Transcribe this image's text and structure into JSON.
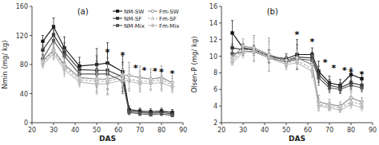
{
  "chart_data": [
    {
      "type": "line",
      "title": "(a)",
      "x_label": "DAS",
      "y_label": "Nmin (mg/ kg)",
      "x": [
        25,
        30,
        35,
        42,
        50,
        55,
        62,
        65,
        70,
        75,
        80,
        85
      ],
      "xlim": [
        20,
        90
      ],
      "xticks": [
        20,
        30,
        40,
        50,
        60,
        70,
        80,
        90
      ],
      "ylim": [
        0,
        160
      ],
      "yticks": [
        0,
        40,
        80,
        120,
        160
      ],
      "grid": false,
      "legend": "upper right",
      "series": [
        {
          "name": "NM-SW",
          "color": "#111111",
          "marker": "square",
          "line_style": "solid",
          "values": [
            112,
            132,
            103,
            78,
            80,
            82,
            70,
            18,
            16,
            15,
            16,
            14
          ],
          "errors": [
            8,
            12,
            15,
            12,
            22,
            28,
            22,
            5,
            4,
            4,
            4,
            4
          ]
        },
        {
          "name": "NM-SF",
          "color": "#333333",
          "marker": "square",
          "line_style": "solid",
          "values": [
            100,
            121,
            97,
            73,
            72,
            72,
            63,
            16,
            14,
            13,
            14,
            12
          ],
          "errors": [
            7,
            11,
            13,
            10,
            20,
            25,
            20,
            4,
            3,
            3,
            3,
            3
          ]
        },
        {
          "name": "NM-Mix",
          "color": "#555555",
          "marker": "square",
          "line_style": "solid",
          "values": [
            88,
            113,
            92,
            67,
            67,
            67,
            57,
            14,
            12,
            11,
            12,
            10
          ],
          "errors": [
            6,
            10,
            11,
            8,
            18,
            22,
            17,
            3,
            2,
            2,
            2,
            2
          ]
        },
        {
          "name": "Fm-SW",
          "color": "#888888",
          "marker": "open-circle",
          "line_style": "solid",
          "values": [
            85,
            100,
            80,
            62,
            60,
            60,
            65,
            65,
            62,
            60,
            62,
            55
          ],
          "errors": [
            7,
            11,
            12,
            9,
            18,
            20,
            15,
            18,
            16,
            14,
            16,
            10
          ]
        },
        {
          "name": "Fm-SF",
          "color": "#aaaaaa",
          "marker": "open-triangle",
          "line_style": "dashed",
          "values": [
            83,
            98,
            77,
            59,
            57,
            57,
            62,
            60,
            57,
            57,
            59,
            52
          ],
          "errors": [
            6,
            10,
            11,
            8,
            16,
            18,
            13,
            16,
            14,
            12,
            14,
            9
          ]
        },
        {
          "name": "Fm-Mix",
          "color": "#bbbbbb",
          "marker": "star",
          "line_style": "solid",
          "values": [
            80,
            95,
            73,
            56,
            53,
            54,
            58,
            57,
            54,
            54,
            55,
            49
          ],
          "errors": [
            5,
            9,
            10,
            7,
            14,
            16,
            11,
            14,
            12,
            10,
            12,
            8
          ]
        }
      ],
      "annotations": [
        {
          "text": "*",
          "x": 55,
          "y": 100
        },
        {
          "text": "*",
          "x": 62,
          "y": 95
        },
        {
          "text": "*",
          "x": 68,
          "y": 78
        },
        {
          "text": "*",
          "x": 72,
          "y": 75
        },
        {
          "text": "*",
          "x": 77,
          "y": 73
        },
        {
          "text": "*",
          "x": 80,
          "y": 72
        },
        {
          "text": "*",
          "x": 85,
          "y": 70
        }
      ]
    },
    {
      "type": "line",
      "title": "(b)",
      "x_label": "DAS",
      "y_label": "Olsen-P (mg/ kg)",
      "x": [
        25,
        30,
        35,
        42,
        50,
        55,
        62,
        65,
        70,
        75,
        80,
        85
      ],
      "xlim": [
        20,
        90
      ],
      "xticks": [
        20,
        30,
        40,
        50,
        60,
        70,
        80,
        90
      ],
      "ylim": [
        2,
        16
      ],
      "yticks": [
        2,
        4,
        6,
        8,
        10,
        12,
        14,
        16
      ],
      "grid": false,
      "series": [
        {
          "name": "NM-SW",
          "color": "#111111",
          "marker": "square",
          "line_style": "solid",
          "values": [
            12.8,
            11.0,
            10.8,
            10.0,
            9.7,
            10.2,
            10.2,
            8.2,
            6.8,
            6.5,
            7.8,
            7.3
          ],
          "errors": [
            1.5,
            0.5,
            0.5,
            0.8,
            0.6,
            1.8,
            0.8,
            1.2,
            0.8,
            0.7,
            0.8,
            0.7
          ]
        },
        {
          "name": "NM-SF",
          "color": "#333333",
          "marker": "square",
          "line_style": "solid",
          "values": [
            11.0,
            10.8,
            10.8,
            10.0,
            9.5,
            9.9,
            9.8,
            7.8,
            6.5,
            6.2,
            6.8,
            6.5
          ],
          "errors": [
            0.5,
            0.4,
            0.5,
            0.7,
            0.5,
            1.5,
            0.7,
            1.0,
            0.7,
            0.6,
            0.7,
            0.6
          ]
        },
        {
          "name": "NM-Mix",
          "color": "#555555",
          "marker": "square",
          "line_style": "solid",
          "values": [
            10.3,
            10.5,
            10.6,
            9.8,
            9.3,
            9.7,
            9.5,
            7.4,
            6.2,
            6.0,
            6.5,
            6.2
          ],
          "errors": [
            0.4,
            0.4,
            0.5,
            0.6,
            0.5,
            1.2,
            0.6,
            0.9,
            0.6,
            0.5,
            0.6,
            0.5
          ]
        },
        {
          "name": "Fm-SW",
          "color": "#888888",
          "marker": "open-circle",
          "line_style": "solid",
          "values": [
            9.8,
            11.2,
            11.0,
            10.2,
            9.5,
            9.8,
            9.0,
            4.5,
            4.2,
            4.0,
            5.0,
            4.5
          ],
          "errors": [
            0.4,
            0.9,
            1.5,
            2.0,
            0.8,
            1.2,
            1.2,
            0.8,
            0.6,
            0.5,
            0.7,
            0.5
          ]
        },
        {
          "name": "Fm-SF",
          "color": "#aaaaaa",
          "marker": "open-triangle",
          "line_style": "dashed",
          "values": [
            9.5,
            10.8,
            10.8,
            10.0,
            9.2,
            9.5,
            8.5,
            4.2,
            4.0,
            3.8,
            4.5,
            4.2
          ],
          "errors": [
            0.4,
            0.8,
            1.4,
            1.8,
            0.7,
            1.0,
            1.0,
            0.7,
            0.5,
            0.4,
            0.6,
            0.4
          ]
        },
        {
          "name": "Fm-Mix",
          "color": "#bbbbbb",
          "marker": "star",
          "line_style": "solid",
          "values": [
            9.2,
            10.5,
            10.5,
            9.8,
            9.0,
            9.2,
            8.2,
            4.0,
            3.8,
            3.5,
            4.2,
            3.8
          ],
          "errors": [
            0.3,
            0.7,
            1.2,
            1.6,
            0.6,
            0.8,
            0.8,
            0.6,
            0.4,
            0.3,
            0.5,
            0.4
          ]
        }
      ],
      "annotations": [
        {
          "text": "*",
          "x": 55,
          "y": 12.8
        },
        {
          "text": "*",
          "x": 62,
          "y": 12.0
        },
        {
          "text": "*",
          "x": 68,
          "y": 9.5
        },
        {
          "text": "*",
          "x": 72,
          "y": 8.8
        },
        {
          "text": "*",
          "x": 77,
          "y": 8.5
        },
        {
          "text": "*",
          "x": 80,
          "y": 8.3
        },
        {
          "text": "*",
          "x": 85,
          "y": 8.0
        }
      ]
    }
  ]
}
